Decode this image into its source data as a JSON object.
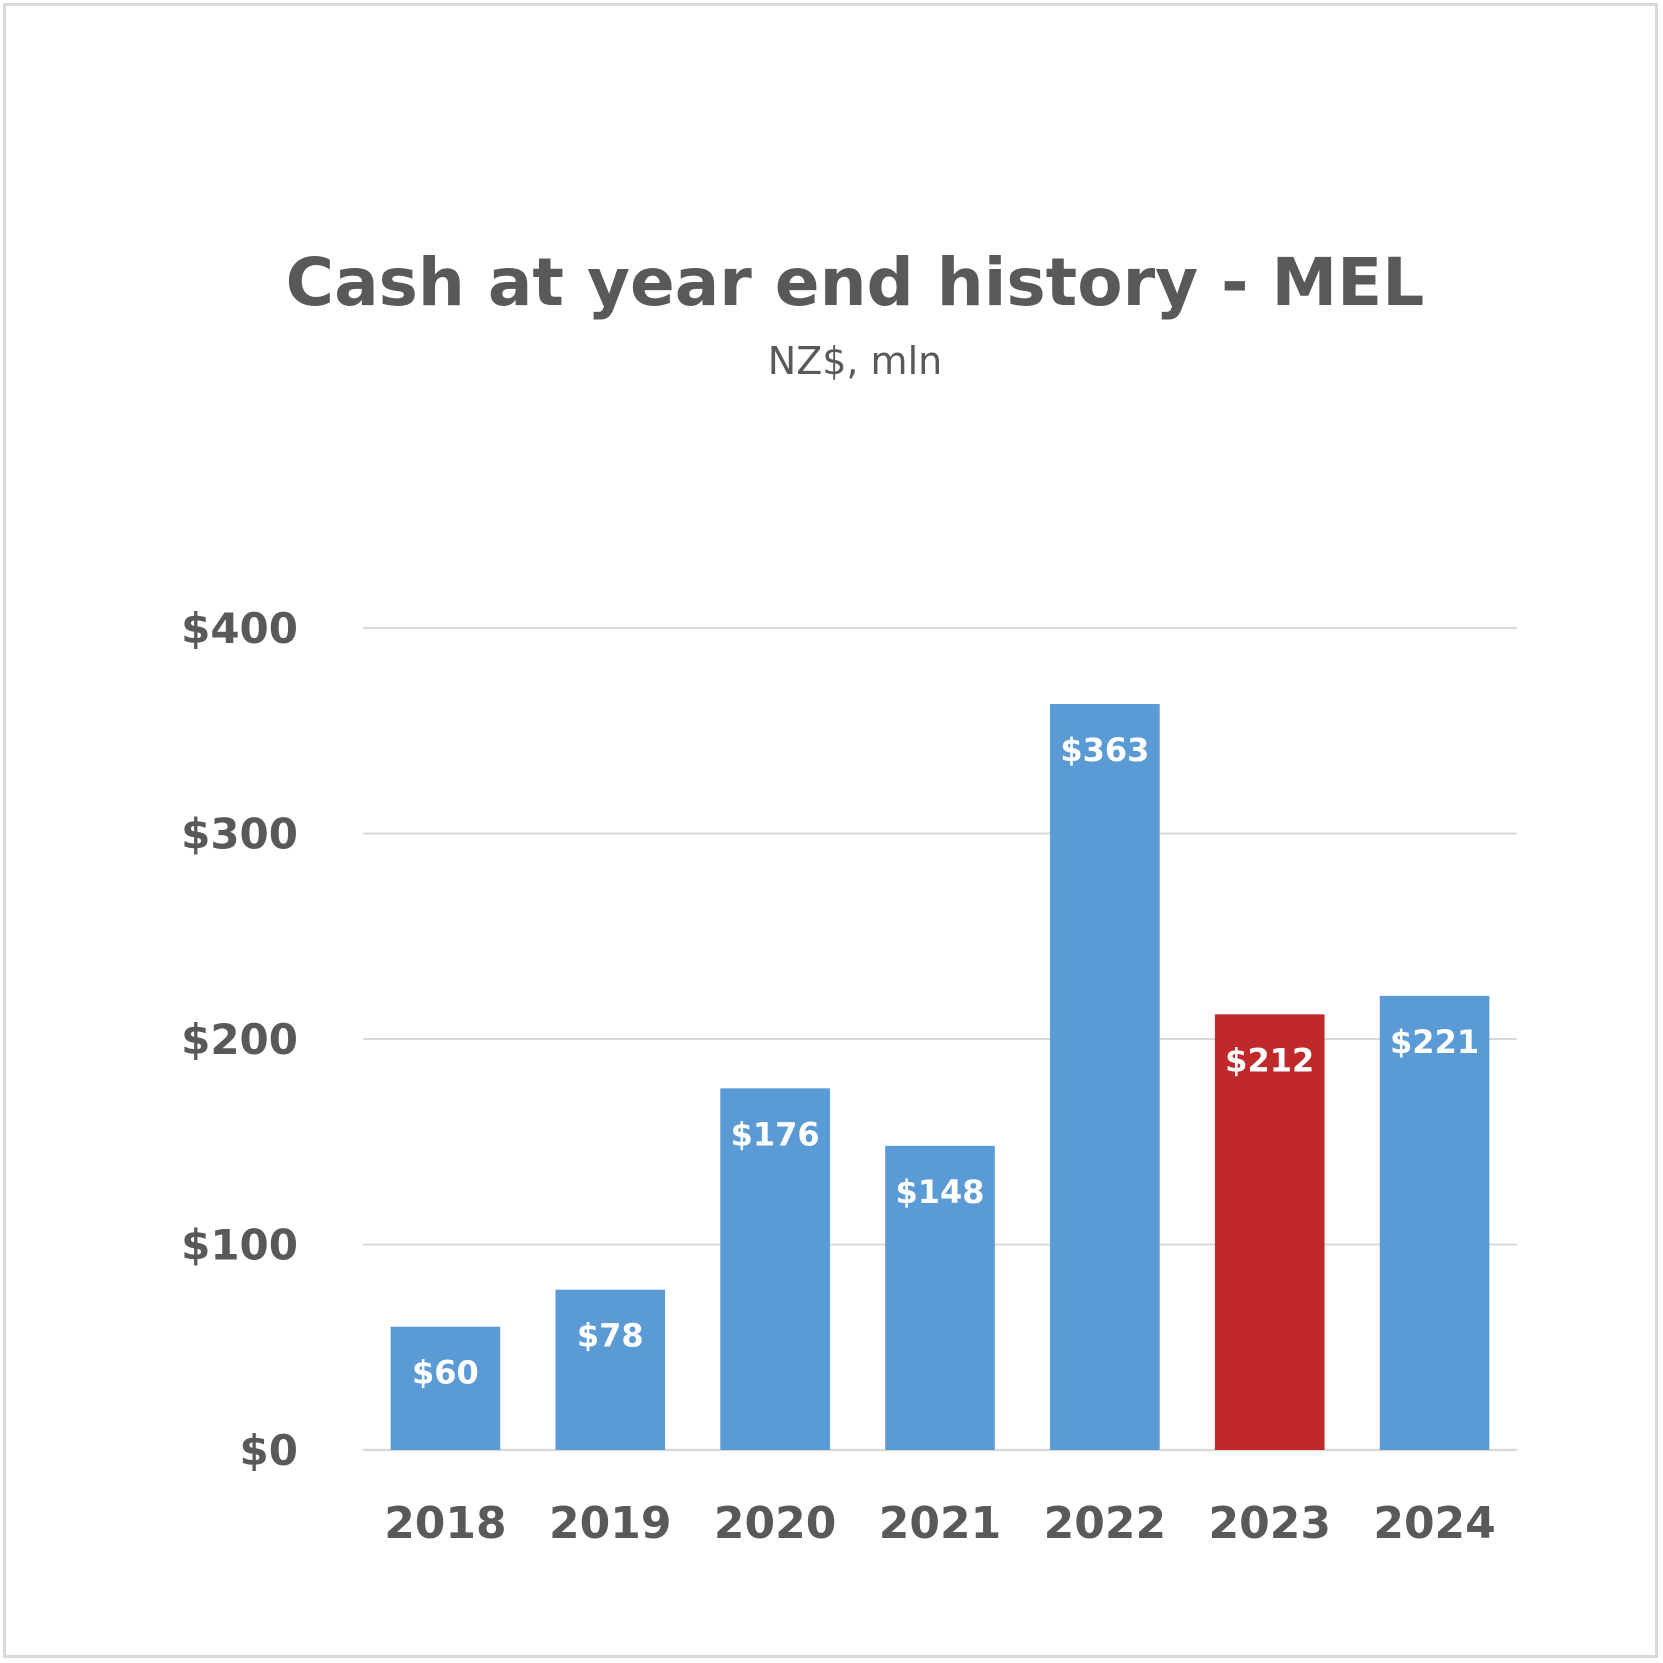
{
  "chart_data": {
    "type": "bar",
    "title": "Cash at year end history - MEL",
    "subtitle": "NZ$, mln",
    "categories": [
      "2018",
      "2019",
      "2020",
      "2021",
      "2022",
      "2023",
      "2024"
    ],
    "values": [
      60,
      78,
      176,
      148,
      363,
      212,
      221
    ],
    "data_labels": [
      "$60",
      "$78",
      "$176",
      "$148",
      "$363",
      "$212",
      "$221"
    ],
    "ylim": [
      0,
      400
    ],
    "yticks": [
      0,
      100,
      200,
      300,
      400
    ],
    "ytick_labels": [
      "$0",
      "$100",
      "$200",
      "$300",
      "$400"
    ],
    "grid": true,
    "legend": "none",
    "colors": {
      "default_bar": "#5b9bd5",
      "highlight_bar": "#c0292b",
      "text": "#595959",
      "gridline": "#d9d9d9"
    },
    "highlight_category": "2023"
  }
}
